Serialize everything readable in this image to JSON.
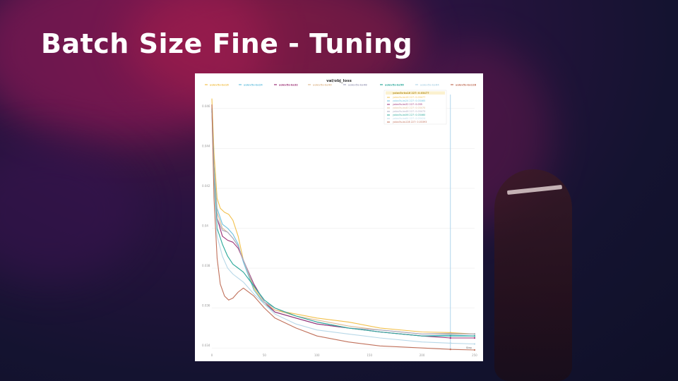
{
  "slide": {
    "title": "Batch Size Fine - Tuning"
  },
  "chart_data": {
    "type": "line",
    "title": "val/obj_loss",
    "xlim": [
      0,
      250
    ],
    "ylim": [
      0.0339,
      0.0467
    ],
    "x_ticks": [
      0,
      50,
      100,
      150,
      200,
      250
    ],
    "x_tick_labels": [
      "0",
      "50",
      "100",
      "150",
      "200",
      "250"
    ],
    "y_ticks": [
      0.034,
      0.036,
      0.038,
      0.04,
      0.042,
      0.044,
      0.046
    ],
    "y_tick_labels": [
      "0.034",
      "0.036",
      "0.038",
      "0.04",
      "0.042",
      "0.044",
      "0.046"
    ],
    "grid": true,
    "legend_position": "top",
    "hover_x": 227,
    "hover_label": "Step",
    "tooltip_header": "yolov5s-bs16 227: 0.03477",
    "series": [
      {
        "name": "yolov5s-bs16",
        "color": "#f2c14e",
        "x": [
          0,
          2,
          5,
          8,
          12,
          16,
          20,
          25,
          30,
          40,
          50,
          60,
          80,
          100,
          130,
          160,
          200,
          227,
          250
        ],
        "y": [
          0.0465,
          0.0438,
          0.0415,
          0.041,
          0.0408,
          0.0407,
          0.0404,
          0.0396,
          0.0384,
          0.037,
          0.0362,
          0.0359,
          0.0357,
          0.0355,
          0.0353,
          0.035,
          0.0348,
          0.03477,
          0.0347
        ]
      },
      {
        "name": "yolov5s-bs24",
        "color": "#6cc2df",
        "x": [
          0,
          2,
          5,
          10,
          15,
          20,
          25,
          30,
          40,
          50,
          60,
          80,
          100,
          130,
          160,
          200,
          227,
          250
        ],
        "y": [
          0.046,
          0.0432,
          0.041,
          0.0402,
          0.04,
          0.0397,
          0.0392,
          0.0383,
          0.0369,
          0.0362,
          0.0358,
          0.0355,
          0.0352,
          0.035,
          0.0348,
          0.0346,
          0.03465,
          0.0346
        ]
      },
      {
        "name": "yolov5s-bs32",
        "color": "#9b2e74",
        "x": [
          0,
          2,
          5,
          10,
          15,
          20,
          25,
          30,
          40,
          50,
          60,
          80,
          100,
          130,
          160,
          200,
          227,
          250
        ],
        "y": [
          0.046,
          0.043,
          0.0405,
          0.0396,
          0.0394,
          0.0393,
          0.039,
          0.0384,
          0.0372,
          0.0363,
          0.0358,
          0.0355,
          0.0352,
          0.035,
          0.0348,
          0.0346,
          0.0345,
          0.0345
        ]
      },
      {
        "name": "yolov5s-bs40",
        "color": "#e0bc94",
        "x": [
          0,
          2,
          5,
          10,
          15,
          20,
          25,
          30,
          40,
          50,
          60,
          80,
          100,
          130,
          160,
          200,
          227,
          250
        ],
        "y": [
          0.0462,
          0.043,
          0.0408,
          0.04,
          0.0398,
          0.0395,
          0.0391,
          0.0384,
          0.0371,
          0.0363,
          0.0359,
          0.0356,
          0.0354,
          0.0351,
          0.0349,
          0.0347,
          0.0347,
          0.0347
        ]
      },
      {
        "name": "yolov5s-bs48",
        "color": "#a8a8c0",
        "x": [
          0,
          2,
          5,
          10,
          15,
          20,
          25,
          30,
          40,
          50,
          60,
          80,
          100,
          130,
          160,
          200,
          227,
          250
        ],
        "y": [
          0.0458,
          0.0428,
          0.0405,
          0.0399,
          0.0398,
          0.0395,
          0.0391,
          0.0384,
          0.0371,
          0.0363,
          0.036,
          0.0356,
          0.0353,
          0.035,
          0.0349,
          0.0347,
          0.03473,
          0.0347
        ]
      },
      {
        "name": "yolov5s-bs56",
        "color": "#2aa89a",
        "x": [
          0,
          2,
          5,
          10,
          15,
          20,
          25,
          30,
          40,
          50,
          60,
          80,
          100,
          130,
          160,
          200,
          227,
          250
        ],
        "y": [
          0.046,
          0.0425,
          0.04,
          0.0392,
          0.0386,
          0.0382,
          0.038,
          0.0378,
          0.0371,
          0.0364,
          0.036,
          0.0356,
          0.0353,
          0.035,
          0.0348,
          0.0346,
          0.0346,
          0.0346
        ]
      },
      {
        "name": "yolov5s-bs64",
        "color": "#b8d8e8",
        "x": [
          0,
          2,
          5,
          10,
          15,
          20,
          25,
          30,
          40,
          50,
          60,
          80,
          100,
          130,
          160,
          200,
          227,
          250
        ],
        "y": [
          0.0458,
          0.0422,
          0.0396,
          0.0386,
          0.038,
          0.0377,
          0.0375,
          0.0373,
          0.0367,
          0.0362,
          0.0357,
          0.0352,
          0.0349,
          0.0347,
          0.0345,
          0.0343,
          0.03424,
          0.0342
        ]
      },
      {
        "name": "yolov5s-bs128",
        "color": "#c0705a",
        "x": [
          0,
          2,
          5,
          8,
          12,
          16,
          20,
          25,
          30,
          40,
          50,
          60,
          80,
          100,
          130,
          160,
          200,
          227,
          250
        ],
        "y": [
          0.0462,
          0.0415,
          0.0385,
          0.0372,
          0.0366,
          0.0364,
          0.0365,
          0.0368,
          0.037,
          0.0366,
          0.036,
          0.0355,
          0.035,
          0.0346,
          0.0343,
          0.0341,
          0.034,
          0.03393,
          0.0339
        ]
      }
    ],
    "tooltip_rows": [
      {
        "name": "yolov5s-bs16",
        "color": "#f2c14e",
        "text": "yolov5s-bs16 227: 0.03477"
      },
      {
        "name": "yolov5s-bs24",
        "color": "#6cc2df",
        "text": "yolov5s-bs24 227: 0.03465"
      },
      {
        "name": "yolov5s-bs32",
        "color": "#9b2e74",
        "text": "yolov5s-bs32 227: 0.035"
      },
      {
        "name": "yolov5s-bs40",
        "color": "#e0bc94",
        "text": "yolov5s-bs40 227: 0.03470"
      },
      {
        "name": "yolov5s-bs48",
        "color": "#a8a8c0",
        "text": "yolov5s-bs48 227: 0.03473"
      },
      {
        "name": "yolov5s-bs56",
        "color": "#2aa89a",
        "text": "yolov5s-bs56 227: 0.03460"
      },
      {
        "name": "yolov5s-bs64",
        "color": "#b8d8e8",
        "text": "yolov5s-bs64 227: 0.03424"
      },
      {
        "name": "yolov5s-bs128",
        "color": "#c0705a",
        "text": "yolov5s-bs128 227: 0.03393"
      }
    ]
  }
}
